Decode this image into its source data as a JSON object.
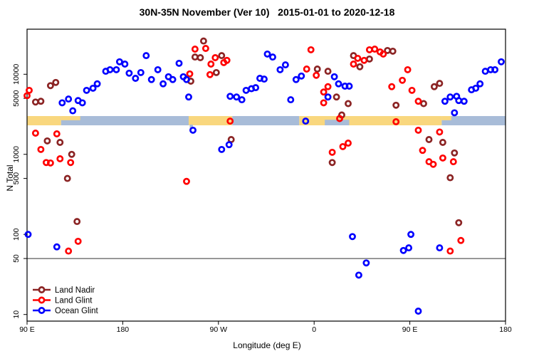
{
  "figure": {
    "title": "30N-35N November (Ver 10)   2015-01-01 to 2020-12-18"
  },
  "chart_data": {
    "type": "scatter",
    "title": "30N-35N November (Ver 10)   2015-01-01 to 2020-12-18",
    "xlabel": "Longitude (deg E)",
    "ylabel": "N Total",
    "x_axis": {
      "min": 90,
      "max": 540,
      "ticks": [
        {
          "lon": 90,
          "label": "90 E"
        },
        {
          "lon": 180,
          "label": "180"
        },
        {
          "lon": 270,
          "label": "90 W"
        },
        {
          "lon": 360,
          "label": "0"
        },
        {
          "lon": 450,
          "label": "90 E"
        },
        {
          "lon": 540,
          "label": "180"
        }
      ]
    },
    "y_axis": {
      "scale": "log",
      "ticks": [
        10,
        50,
        100,
        500,
        1000,
        5000,
        10000
      ],
      "tick_labels": [
        "10",
        "50",
        "100",
        "500",
        "1000",
        "5000",
        "10000"
      ]
    },
    "reference_line_y": 50,
    "grid": false,
    "legend_position": "bottom-left",
    "surface_band": {
      "land_color": "#F9D77E",
      "ocean_color": "#A8BCD8",
      "segments": [
        {
          "from": 90,
          "to": 122,
          "surface": "land"
        },
        {
          "from": 122,
          "to": 242,
          "surface": "ocean"
        },
        {
          "from": 242,
          "to": 283,
          "surface": "land"
        },
        {
          "from": 283,
          "to": 346,
          "surface": "ocean"
        },
        {
          "from": 346,
          "to": 480,
          "surface": "land"
        },
        {
          "from": 480,
          "to": 540,
          "surface": "ocean"
        }
      ],
      "overlays": [
        {
          "surface": "land",
          "from": 122,
          "to": 140,
          "part": "top"
        },
        {
          "surface": "land",
          "from": 480,
          "to": 489,
          "part": "top"
        },
        {
          "surface": "ocean",
          "from": 370,
          "to": 393,
          "part": "bottom"
        },
        {
          "surface": "ocean",
          "from": 243,
          "to": 246,
          "part": "below"
        }
      ]
    },
    "series": [
      {
        "name": "Land Nadir",
        "color": "#8B2424",
        "points": [
          [
            98,
            4500
          ],
          [
            103,
            4600
          ],
          [
            112,
            7200
          ],
          [
            117,
            7900
          ],
          [
            109,
            1470
          ],
          [
            121,
            1410
          ],
          [
            132,
            1000
          ],
          [
            128,
            500
          ],
          [
            137,
            145
          ],
          [
            244,
            8200
          ],
          [
            256,
            26000
          ],
          [
            248,
            16400
          ],
          [
            253,
            16100
          ],
          [
            268,
            10500
          ],
          [
            273,
            17100
          ],
          [
            282,
            1530
          ],
          [
            386,
            3100
          ],
          [
            397,
            17100
          ],
          [
            403,
            12400
          ],
          [
            412,
            15500
          ],
          [
            373,
            10900
          ],
          [
            363,
            11600
          ],
          [
            381,
            5200
          ],
          [
            392,
            4300
          ],
          [
            377,
            790
          ],
          [
            429,
            19800
          ],
          [
            434,
            19400
          ],
          [
            437,
            4100
          ],
          [
            463,
            4300
          ],
          [
            473,
            7000
          ],
          [
            478,
            7700
          ],
          [
            468,
            1530
          ],
          [
            481,
            1410
          ],
          [
            492,
            1040
          ],
          [
            488,
            510
          ],
          [
            496,
            140
          ]
        ]
      },
      {
        "name": "Land Glint",
        "color": "#FF0000",
        "points": [
          [
            92,
            6300
          ],
          [
            90,
            5400
          ],
          [
            98,
            1840
          ],
          [
            118,
            1800
          ],
          [
            103,
            1150
          ],
          [
            121,
            880
          ],
          [
            108,
            790
          ],
          [
            112,
            780
          ],
          [
            131,
            790
          ],
          [
            138,
            82
          ],
          [
            129,
            62
          ],
          [
            240,
            460
          ],
          [
            243,
            10100
          ],
          [
            248,
            20600
          ],
          [
            258,
            21000
          ],
          [
            263,
            13400
          ],
          [
            262,
            9900
          ],
          [
            267,
            16100
          ],
          [
            278,
            14900
          ],
          [
            275,
            14000
          ],
          [
            281,
            2600
          ],
          [
            357,
            20200
          ],
          [
            353,
            11600
          ],
          [
            362,
            9700
          ],
          [
            373,
            7000
          ],
          [
            369,
            6000
          ],
          [
            369,
            4400
          ],
          [
            384,
            2800
          ],
          [
            387,
            1250
          ],
          [
            392,
            1380
          ],
          [
            377,
            1060
          ],
          [
            401,
            15800
          ],
          [
            397,
            13400
          ],
          [
            407,
            14900
          ],
          [
            412,
            20200
          ],
          [
            417,
            20600
          ],
          [
            422,
            19000
          ],
          [
            425,
            17900
          ],
          [
            448,
            11400
          ],
          [
            443,
            8400
          ],
          [
            433,
            7000
          ],
          [
            452,
            6300
          ],
          [
            458,
            4600
          ],
          [
            437,
            2550
          ],
          [
            458,
            2000
          ],
          [
            478,
            1900
          ],
          [
            462,
            1120
          ],
          [
            468,
            810
          ],
          [
            472,
            750
          ],
          [
            481,
            900
          ],
          [
            491,
            810
          ],
          [
            498,
            84
          ],
          [
            488,
            62
          ]
        ]
      },
      {
        "name": "Ocean Glint",
        "color": "#0000FF",
        "points": [
          [
            91,
            100
          ],
          [
            118,
            70
          ],
          [
            123,
            4400
          ],
          [
            129,
            4900
          ],
          [
            133,
            3500
          ],
          [
            138,
            4700
          ],
          [
            142,
            4400
          ],
          [
            146,
            6300
          ],
          [
            152,
            6700
          ],
          [
            156,
            7600
          ],
          [
            164,
            10900
          ],
          [
            168,
            11400
          ],
          [
            174,
            11400
          ],
          [
            177,
            14300
          ],
          [
            182,
            13400
          ],
          [
            186,
            10300
          ],
          [
            192,
            8900
          ],
          [
            197,
            10500
          ],
          [
            202,
            17100
          ],
          [
            207,
            8600
          ],
          [
            213,
            11400
          ],
          [
            218,
            7600
          ],
          [
            223,
            9300
          ],
          [
            227,
            8600
          ],
          [
            233,
            13700
          ],
          [
            237,
            9300
          ],
          [
            240,
            8600
          ],
          [
            242,
            5200
          ],
          [
            246,
            2000
          ],
          [
            273,
            1150
          ],
          [
            280,
            1320
          ],
          [
            281,
            5300
          ],
          [
            287,
            5200
          ],
          [
            292,
            4800
          ],
          [
            296,
            6300
          ],
          [
            301,
            6600
          ],
          [
            305,
            6800
          ],
          [
            309,
            8900
          ],
          [
            313,
            8700
          ],
          [
            316,
            17900
          ],
          [
            321,
            16400
          ],
          [
            328,
            11400
          ],
          [
            333,
            13100
          ],
          [
            338,
            4800
          ],
          [
            343,
            8600
          ],
          [
            348,
            9500
          ],
          [
            352,
            2600
          ],
          [
            373,
            5200
          ],
          [
            379,
            9300
          ],
          [
            383,
            7600
          ],
          [
            389,
            7100
          ],
          [
            393,
            7100
          ],
          [
            396,
            94
          ],
          [
            409,
            44
          ],
          [
            402,
            31
          ],
          [
            451,
            100
          ],
          [
            444,
            63
          ],
          [
            449,
            68
          ],
          [
            478,
            68
          ],
          [
            458,
            11
          ],
          [
            483,
            4600
          ],
          [
            488,
            5200
          ],
          [
            494,
            5300
          ],
          [
            496,
            4700
          ],
          [
            501,
            4600
          ],
          [
            492,
            3300
          ],
          [
            508,
            6400
          ],
          [
            512,
            6700
          ],
          [
            516,
            7600
          ],
          [
            521,
            10900
          ],
          [
            526,
            11400
          ],
          [
            530,
            11400
          ],
          [
            536,
            14300
          ]
        ]
      }
    ]
  }
}
